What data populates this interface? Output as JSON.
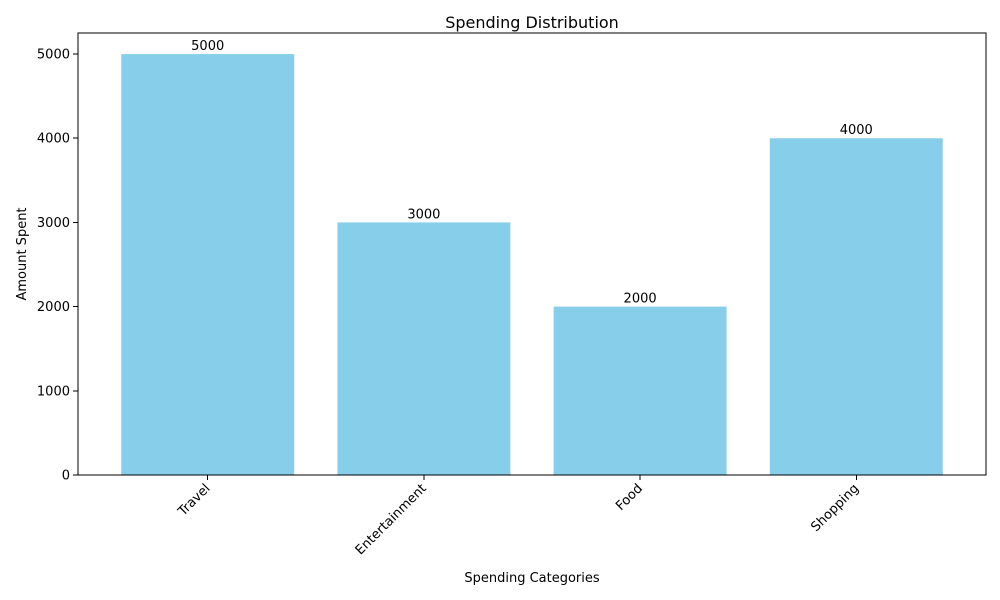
{
  "chart_data": {
    "type": "bar",
    "title": "Spending Distribution",
    "xlabel": "Spending Categories",
    "ylabel": "Amount Spent",
    "categories": [
      "Travel",
      "Entertainment",
      "Food",
      "Shopping"
    ],
    "values": [
      5000,
      3000,
      2000,
      4000
    ],
    "data_labels": [
      "5000",
      "3000",
      "2000",
      "4000"
    ],
    "ylim": [
      0,
      5250
    ],
    "yticks": [
      0,
      1000,
      2000,
      3000,
      4000,
      5000
    ],
    "ytick_labels": [
      "0",
      "1000",
      "2000",
      "3000",
      "4000",
      "5000"
    ],
    "grid": false,
    "legend": "none",
    "colors": {
      "bar": "#87ceeb",
      "axis": "#000000",
      "background": "#ffffff"
    }
  }
}
